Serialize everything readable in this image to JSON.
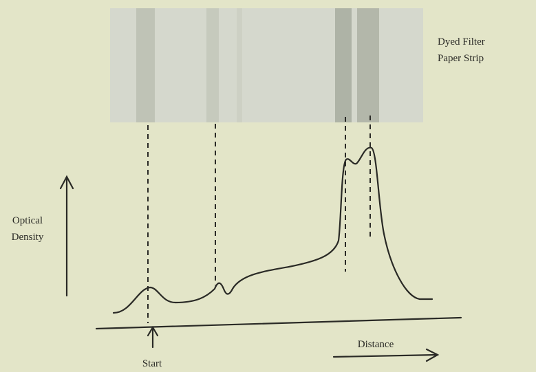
{
  "labels": {
    "strip": [
      "Dyed Filter",
      "Paper Strip"
    ],
    "y_axis": [
      "Optical",
      "Density"
    ],
    "start": "Start",
    "x_axis": "Distance"
  }
}
